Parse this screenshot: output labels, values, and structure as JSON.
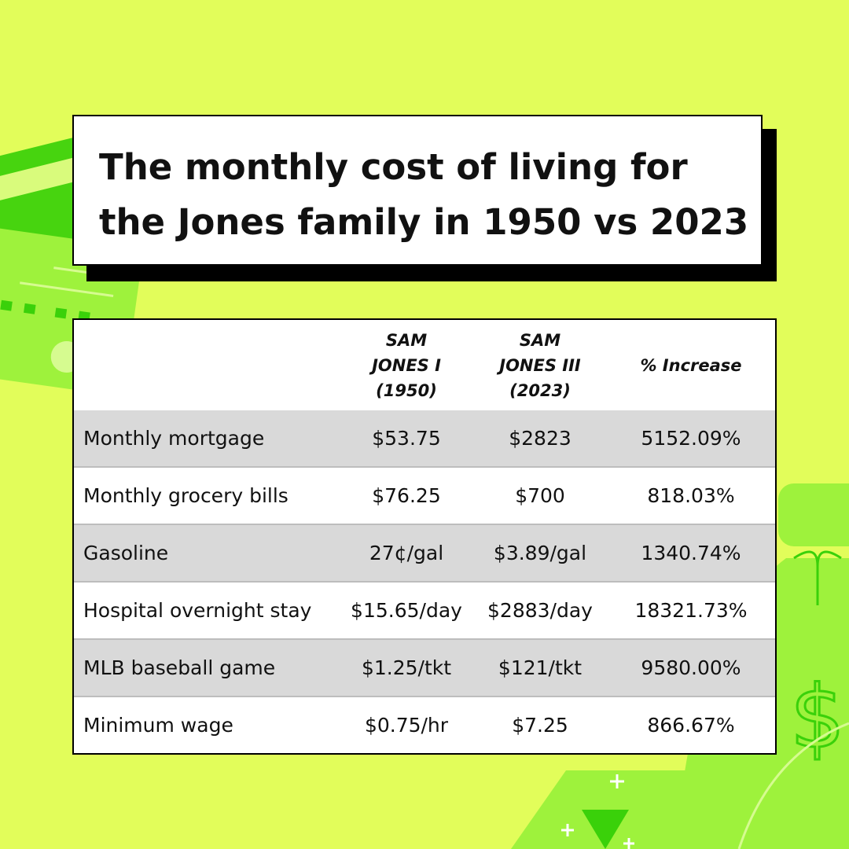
{
  "header": {
    "title": "The monthly cost of living for the Jones family in 1950 vs 2023"
  },
  "table": {
    "columns": [
      "SAM JONES I (1950)",
      "SAM JONES III (2023)",
      "% Increase"
    ],
    "rows": [
      [
        "Monthly mortgage",
        "$53.75",
        "$2823",
        "5152.09%"
      ],
      [
        "Monthly grocery bills",
        "$76.25",
        "$700",
        "818.03%"
      ],
      [
        "Gasoline",
        "27¢/gal",
        "$3.89/gal",
        "1340.74%"
      ],
      [
        "Hospital overnight stay",
        "$15.65/day",
        "$2883/day",
        "18321.73%"
      ],
      [
        "MLB baseball game",
        "$1.25/tkt",
        "$121/tkt",
        "9580.00%"
      ],
      [
        "Minimum wage",
        "$0.75/hr",
        "$7.25",
        "866.67%"
      ]
    ]
  }
}
